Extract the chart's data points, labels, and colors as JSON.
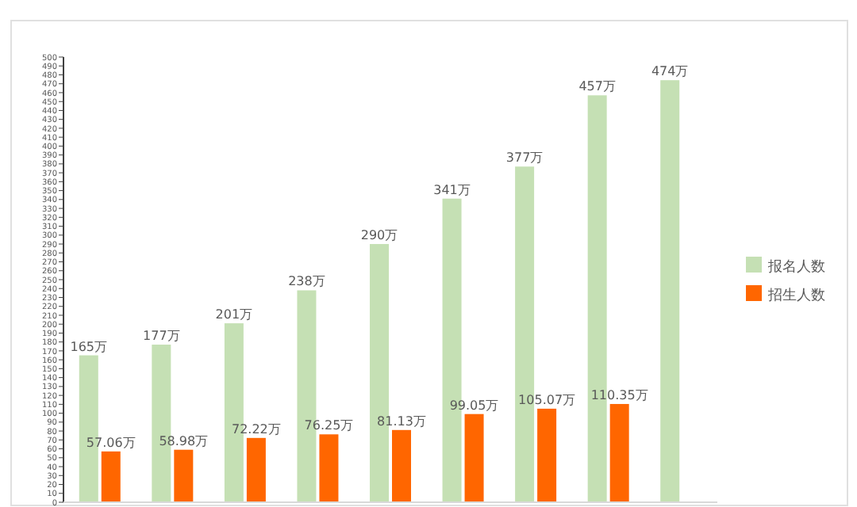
{
  "chart_data": {
    "type": "bar",
    "categories": [
      null,
      null,
      null,
      null,
      null,
      null,
      null,
      null,
      null
    ],
    "series": [
      {
        "name": "报名人数",
        "color": "#c5e0b4",
        "values": [
          165,
          177,
          201,
          238,
          290,
          341,
          377,
          457,
          474
        ],
        "value_labels": [
          "165万",
          "177万",
          "201万",
          "238万",
          "290万",
          "341万",
          "377万",
          "457万",
          "474万"
        ]
      },
      {
        "name": "招生人数",
        "color": "#ff6600",
        "values": [
          57.06,
          58.98,
          72.22,
          76.25,
          81.13,
          99.05,
          105.07,
          110.35,
          null
        ],
        "value_labels": [
          "57.06万",
          "58.98万",
          "72.22万",
          "76.25万",
          "81.13万",
          "99.05万",
          "105.07万",
          "110.35万",
          null
        ]
      }
    ],
    "ylim": [
      0,
      500
    ],
    "yticks": [
      0,
      10,
      20,
      30,
      40,
      50,
      60,
      70,
      80,
      90,
      100,
      110,
      120,
      130,
      140,
      150,
      160,
      170,
      180,
      190,
      200,
      210,
      220,
      230,
      240,
      250,
      260,
      270,
      280,
      290,
      300,
      310,
      320,
      330,
      340,
      350,
      360,
      370,
      380,
      390,
      400,
      410,
      420,
      430,
      440,
      450,
      460,
      470,
      480,
      490,
      500
    ],
    "grid": false,
    "legend": "right"
  }
}
